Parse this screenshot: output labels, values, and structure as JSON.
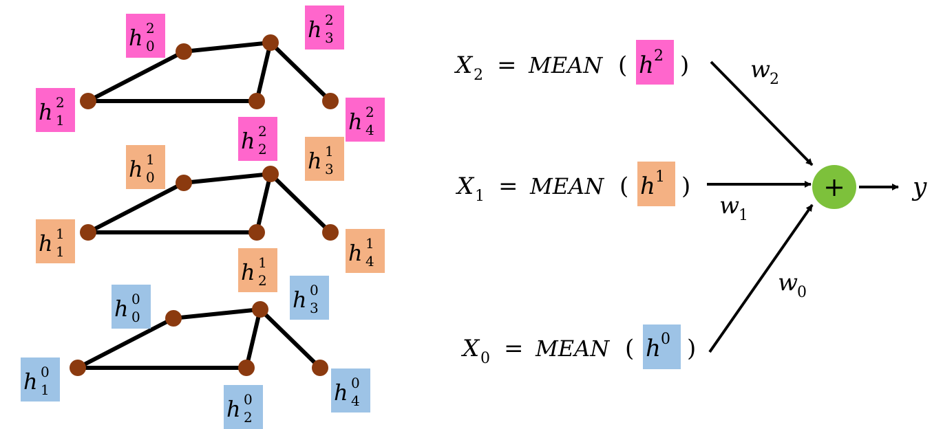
{
  "colors": {
    "node": "#8B3A0F",
    "edge": "#000000",
    "layer2": "#FF66CC",
    "layer1": "#F4B183",
    "layer0": "#9DC3E6",
    "sum_node": "#7DC13B"
  },
  "graphs": [
    {
      "layer": "2",
      "nodes": [
        {
          "id": 0,
          "base": "h",
          "sub": "0",
          "sup": "2"
        },
        {
          "id": 1,
          "base": "h",
          "sub": "1",
          "sup": "2"
        },
        {
          "id": 2,
          "base": "h",
          "sub": "2",
          "sup": "2"
        },
        {
          "id": 3,
          "base": "h",
          "sub": "3",
          "sup": "2"
        },
        {
          "id": 4,
          "base": "h",
          "sub": "4",
          "sup": "2"
        }
      ]
    },
    {
      "layer": "1",
      "nodes": [
        {
          "id": 0,
          "base": "h",
          "sub": "0",
          "sup": "1"
        },
        {
          "id": 1,
          "base": "h",
          "sub": "1",
          "sup": "1"
        },
        {
          "id": 2,
          "base": "h",
          "sub": "2",
          "sup": "1"
        },
        {
          "id": 3,
          "base": "h",
          "sub": "3",
          "sup": "1"
        },
        {
          "id": 4,
          "base": "h",
          "sub": "4",
          "sup": "1"
        }
      ]
    },
    {
      "layer": "0",
      "nodes": [
        {
          "id": 0,
          "base": "h",
          "sub": "0",
          "sup": "0"
        },
        {
          "id": 1,
          "base": "h",
          "sub": "1",
          "sup": "0"
        },
        {
          "id": 2,
          "base": "h",
          "sub": "2",
          "sup": "0"
        },
        {
          "id": 3,
          "base": "h",
          "sub": "3",
          "sup": "0"
        },
        {
          "id": 4,
          "base": "h",
          "sub": "4",
          "sup": "0"
        }
      ]
    }
  ],
  "equations": [
    {
      "var": "X",
      "sub": "2",
      "eq": "=",
      "func": "MEAN",
      "open": "(",
      "arg_base": "h",
      "arg_sup": "2",
      "close": ")",
      "weight": "w",
      "weight_sub": "2"
    },
    {
      "var": "X",
      "sub": "1",
      "eq": "=",
      "func": "MEAN",
      "open": "(",
      "arg_base": "h",
      "arg_sup": "1",
      "close": ")",
      "weight": "w",
      "weight_sub": "1"
    },
    {
      "var": "X",
      "sub": "0",
      "eq": "=",
      "func": "MEAN",
      "open": "(",
      "arg_base": "h",
      "arg_sup": "0",
      "close": ")",
      "weight": "w",
      "weight_sub": "0"
    }
  ],
  "sum_symbol": "+",
  "output": "y"
}
